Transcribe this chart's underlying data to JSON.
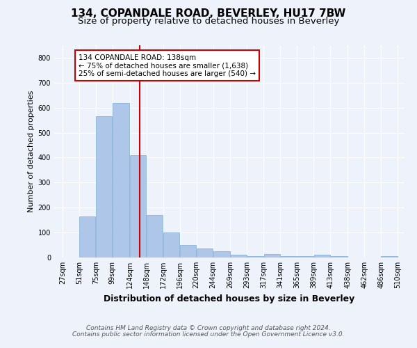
{
  "title": "134, COPANDALE ROAD, BEVERLEY, HU17 7BW",
  "subtitle": "Size of property relative to detached houses in Beverley",
  "xlabel": "Distribution of detached houses by size in Beverley",
  "ylabel": "Number of detached properties",
  "footnote1": "Contains HM Land Registry data © Crown copyright and database right 2024.",
  "footnote2": "Contains public sector information licensed under the Open Government Licence v3.0.",
  "bar_left_edges": [
    27,
    51,
    75,
    99,
    124,
    148,
    172,
    196,
    220,
    244,
    269,
    293,
    317,
    341,
    365,
    389,
    413,
    438,
    462,
    486
  ],
  "bar_heights": [
    0,
    165,
    565,
    620,
    410,
    170,
    100,
    50,
    35,
    25,
    10,
    5,
    15,
    5,
    5,
    10,
    5,
    0,
    0,
    5
  ],
  "bar_widths": [
    24,
    24,
    24,
    25,
    24,
    24,
    24,
    24,
    24,
    25,
    24,
    24,
    24,
    24,
    24,
    24,
    25,
    24,
    24,
    24
  ],
  "bar_color": "#aec6e8",
  "bar_edgecolor": "#7aadd4",
  "vline_x": 138,
  "vline_color": "#cc0000",
  "annotation_line1": "134 COPANDALE ROAD: 138sqm",
  "annotation_line2": "← 75% of detached houses are smaller (1,638)",
  "annotation_line3": "25% of semi-detached houses are larger (540) →",
  "annotation_box_color": "#ffffff",
  "annotation_border_color": "#cc0000",
  "ylim": [
    0,
    850
  ],
  "yticks": [
    0,
    100,
    200,
    300,
    400,
    500,
    600,
    700,
    800
  ],
  "tick_labels": [
    "27sqm",
    "51sqm",
    "75sqm",
    "99sqm",
    "124sqm",
    "148sqm",
    "172sqm",
    "196sqm",
    "220sqm",
    "244sqm",
    "269sqm",
    "293sqm",
    "317sqm",
    "341sqm",
    "365sqm",
    "389sqm",
    "413sqm",
    "438sqm",
    "462sqm",
    "486sqm",
    "510sqm"
  ],
  "bg_color": "#eef2fb",
  "grid_color": "#ffffff",
  "title_fontsize": 11,
  "subtitle_fontsize": 9.5,
  "ylabel_fontsize": 8,
  "xlabel_fontsize": 9,
  "tick_fontsize": 7,
  "annotation_fontsize": 7.5,
  "footnote_fontsize": 6.5
}
